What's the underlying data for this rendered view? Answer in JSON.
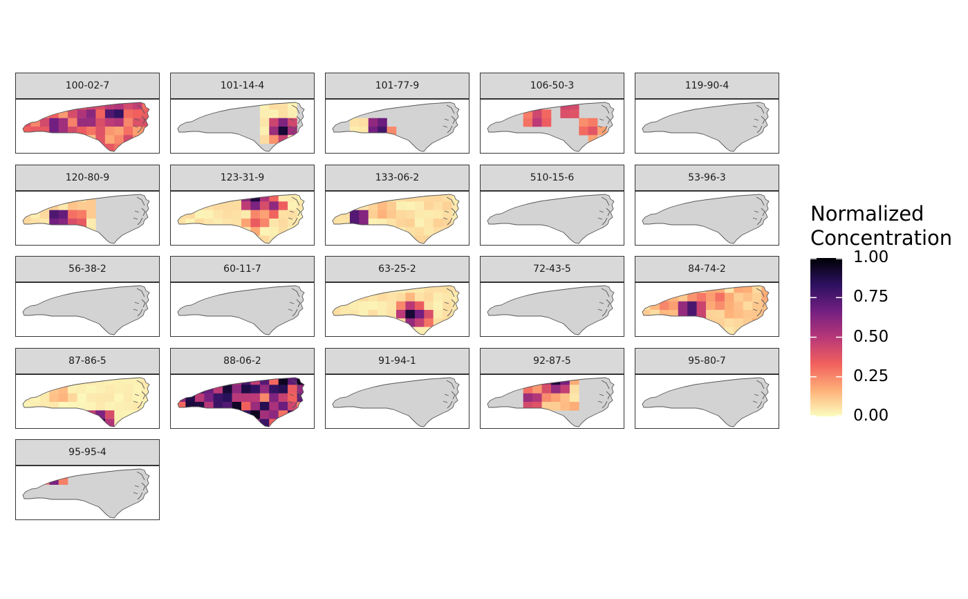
{
  "legend": {
    "title": "Normalized\nConcentration",
    "breaks": [
      "1.00",
      "0.75",
      "0.50",
      "0.25",
      "0.00"
    ],
    "break_values": [
      1.0,
      0.75,
      0.5,
      0.25,
      0.0
    ],
    "range": [
      0,
      1
    ],
    "palette": [
      "#fcfdbf",
      "#feb078",
      "#f1605d",
      "#b73779",
      "#721f81",
      "#2c115f",
      "#000004"
    ]
  },
  "colors": {
    "na_fill": "#d3d3d3",
    "panel_border": "#333333",
    "strip_fill": "#d9d9d9",
    "outline": "#555555"
  },
  "facets": [
    {
      "label": "100-02-7",
      "has_data": true,
      "mean_level": 0.3,
      "hotspots": [
        [
          0.27,
          0.5,
          0.9
        ],
        [
          0.52,
          0.22,
          0.7
        ],
        [
          0.72,
          0.25,
          1.0
        ],
        [
          0.5,
          0.35,
          0.8
        ]
      ]
    },
    {
      "label": "101-14-4",
      "has_data": true,
      "mean_level": 0.05,
      "coverage": "east",
      "hotspots": [
        [
          0.82,
          0.55,
          1.0
        ],
        [
          0.78,
          0.7,
          0.3
        ]
      ]
    },
    {
      "label": "101-77-9",
      "has_data": true,
      "mean_level": 0.05,
      "coverage": "southwest",
      "hotspots": [
        [
          0.37,
          0.52,
          1.0
        ]
      ]
    },
    {
      "label": "106-50-3",
      "has_data": true,
      "mean_level": 0.05,
      "coverage": "spots",
      "hotspots": [
        [
          0.4,
          0.35,
          1.0
        ],
        [
          0.64,
          0.15,
          1.0
        ],
        [
          0.8,
          0.55,
          0.75
        ]
      ]
    },
    {
      "label": "119-90-4",
      "has_data": false
    },
    {
      "label": "120-80-9",
      "has_data": true,
      "mean_level": 0.08,
      "coverage": "west",
      "hotspots": [
        [
          0.28,
          0.48,
          1.0
        ],
        [
          0.42,
          0.55,
          0.5
        ]
      ]
    },
    {
      "label": "123-31-9",
      "has_data": true,
      "mean_level": 0.05,
      "hotspots": [
        [
          0.6,
          0.12,
          1.0
        ],
        [
          0.75,
          0.25,
          0.6
        ],
        [
          0.62,
          0.55,
          0.4
        ]
      ]
    },
    {
      "label": "133-06-2",
      "has_data": true,
      "mean_level": 0.06,
      "hotspots": [
        [
          0.2,
          0.5,
          1.0
        ],
        [
          0.4,
          0.35,
          0.2
        ]
      ]
    },
    {
      "label": "510-15-6",
      "has_data": false
    },
    {
      "label": "53-96-3",
      "has_data": false
    },
    {
      "label": "56-38-2",
      "has_data": false
    },
    {
      "label": "60-11-7",
      "has_data": false
    },
    {
      "label": "63-25-2",
      "has_data": true,
      "mean_level": 0.05,
      "hotspots": [
        [
          0.62,
          0.6,
          1.0
        ],
        [
          0.68,
          0.6,
          0.7
        ],
        [
          0.58,
          0.45,
          0.35
        ]
      ]
    },
    {
      "label": "72-43-5",
      "has_data": false
    },
    {
      "label": "84-74-2",
      "has_data": true,
      "mean_level": 0.12,
      "hotspots": [
        [
          0.38,
          0.5,
          1.0
        ],
        [
          0.45,
          0.35,
          0.4
        ],
        [
          0.6,
          0.3,
          0.35
        ],
        [
          0.2,
          0.38,
          0.3
        ]
      ]
    },
    {
      "label": "87-86-5",
      "has_data": true,
      "mean_level": 0.03,
      "hotspots": [
        [
          0.6,
          0.88,
          1.0
        ],
        [
          0.3,
          0.35,
          0.2
        ]
      ]
    },
    {
      "label": "88-06-2",
      "has_data": true,
      "mean_level": 0.6,
      "hotspots": [
        [
          0.3,
          0.45,
          0.95
        ],
        [
          0.4,
          0.35,
          0.85
        ],
        [
          0.5,
          0.3,
          0.8
        ],
        [
          0.18,
          0.55,
          0.75
        ]
      ]
    },
    {
      "label": "91-94-1",
      "has_data": false
    },
    {
      "label": "92-87-5",
      "has_data": true,
      "mean_level": 0.12,
      "coverage": "central",
      "hotspots": [
        [
          0.55,
          0.1,
          1.0
        ],
        [
          0.35,
          0.45,
          0.7
        ],
        [
          0.48,
          0.25,
          0.45
        ]
      ]
    },
    {
      "label": "95-80-7",
      "has_data": false
    },
    {
      "label": "95-95-4",
      "has_data": true,
      "mean_level": 0.03,
      "coverage": "northwest",
      "hotspots": [
        [
          0.25,
          0.12,
          1.0
        ]
      ]
    }
  ]
}
